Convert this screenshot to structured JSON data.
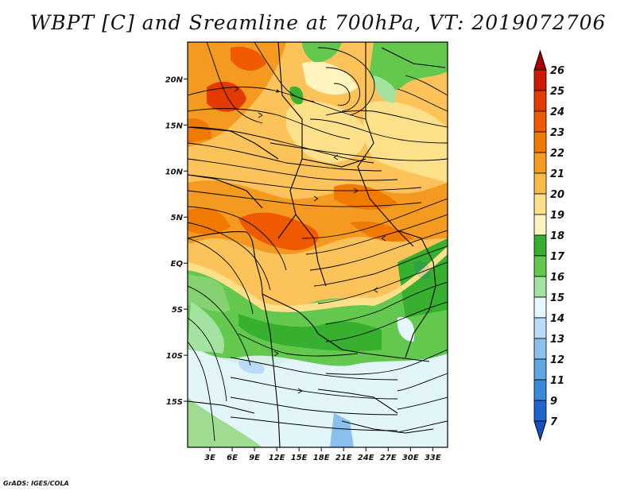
{
  "title": "WBPT [C] and Sreamline at 700hPa, VT: 2019072706",
  "footer": "GrADS: IGES/COLA",
  "map": {
    "variable": "Wet-bulb potential temperature",
    "units": "C",
    "level": "700hPa",
    "valid_time": "2019072706",
    "lon_range": [
      0,
      35
    ],
    "lat_range": [
      -20,
      24
    ],
    "x_ticks": [
      "3E",
      "6E",
      "9E",
      "12E",
      "15E",
      "18E",
      "21E",
      "24E",
      "27E",
      "30E",
      "33E"
    ],
    "y_ticks": [
      "20N",
      "15N",
      "10N",
      "5N",
      "EQ",
      "5S",
      "10S",
      "15S"
    ]
  },
  "colorbar": {
    "labels": [
      "26",
      "25",
      "24",
      "23",
      "22",
      "21",
      "20",
      "19",
      "18",
      "17",
      "16",
      "15",
      "14",
      "13",
      "12",
      "11",
      "9",
      "7"
    ],
    "colors": [
      "#a50000",
      "#cc1a00",
      "#e33a00",
      "#ef5a00",
      "#f07a00",
      "#f59a20",
      "#fbbb4a",
      "#fde08a",
      "#fff4c0",
      "#37b02f",
      "#62c94e",
      "#a4e2a0",
      "#e6f7ff",
      "#b8dcf7",
      "#8ac0ee",
      "#5ea5e4",
      "#3a88d8",
      "#1e66cc",
      "#1450c0"
    ]
  }
}
